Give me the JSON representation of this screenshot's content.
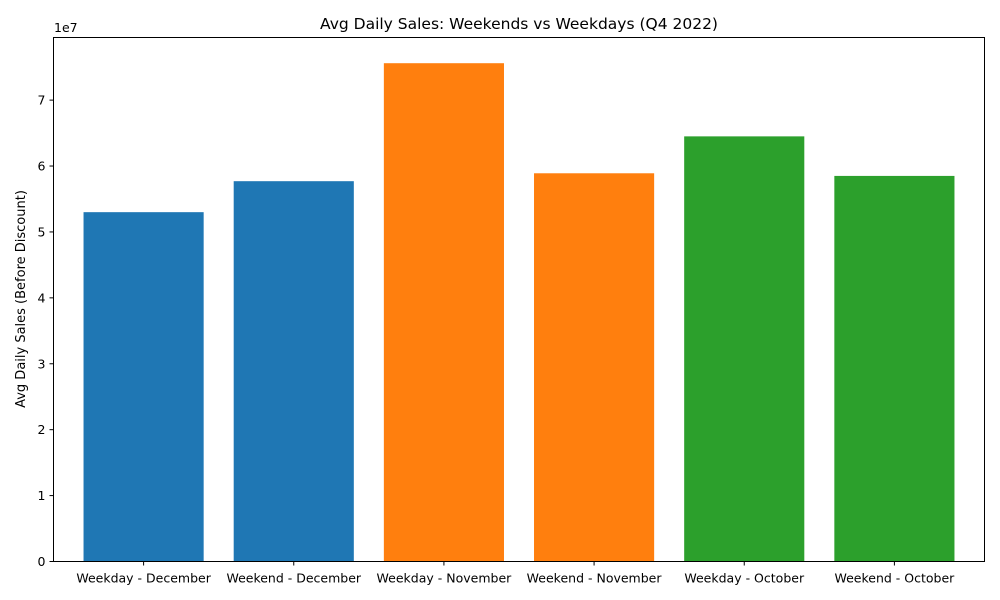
{
  "chart_data": {
    "type": "bar",
    "title": "Avg Daily Sales: Weekends vs Weekdays (Q4 2022)",
    "xlabel": "",
    "ylabel": "Avg Daily Sales (Before Discount)",
    "y_offset_label": "1e7",
    "y_scale_factor": 10000000,
    "ylim": [
      0,
      79500000
    ],
    "y_ticks": [
      0,
      10000000,
      20000000,
      30000000,
      40000000,
      50000000,
      60000000,
      70000000
    ],
    "y_tick_labels": [
      "0",
      "1",
      "2",
      "3",
      "4",
      "5",
      "6",
      "7"
    ],
    "grid": false,
    "categories": [
      "Weekday - December",
      "Weekend - December",
      "Weekday - November",
      "Weekend - November",
      "Weekday - October",
      "Weekend - October"
    ],
    "values": [
      53000000,
      57700000,
      75600000,
      58900000,
      64500000,
      58500000
    ],
    "bar_colors": [
      "#1f77b4",
      "#1f77b4",
      "#ff7f0e",
      "#ff7f0e",
      "#2ca02c",
      "#2ca02c"
    ]
  }
}
